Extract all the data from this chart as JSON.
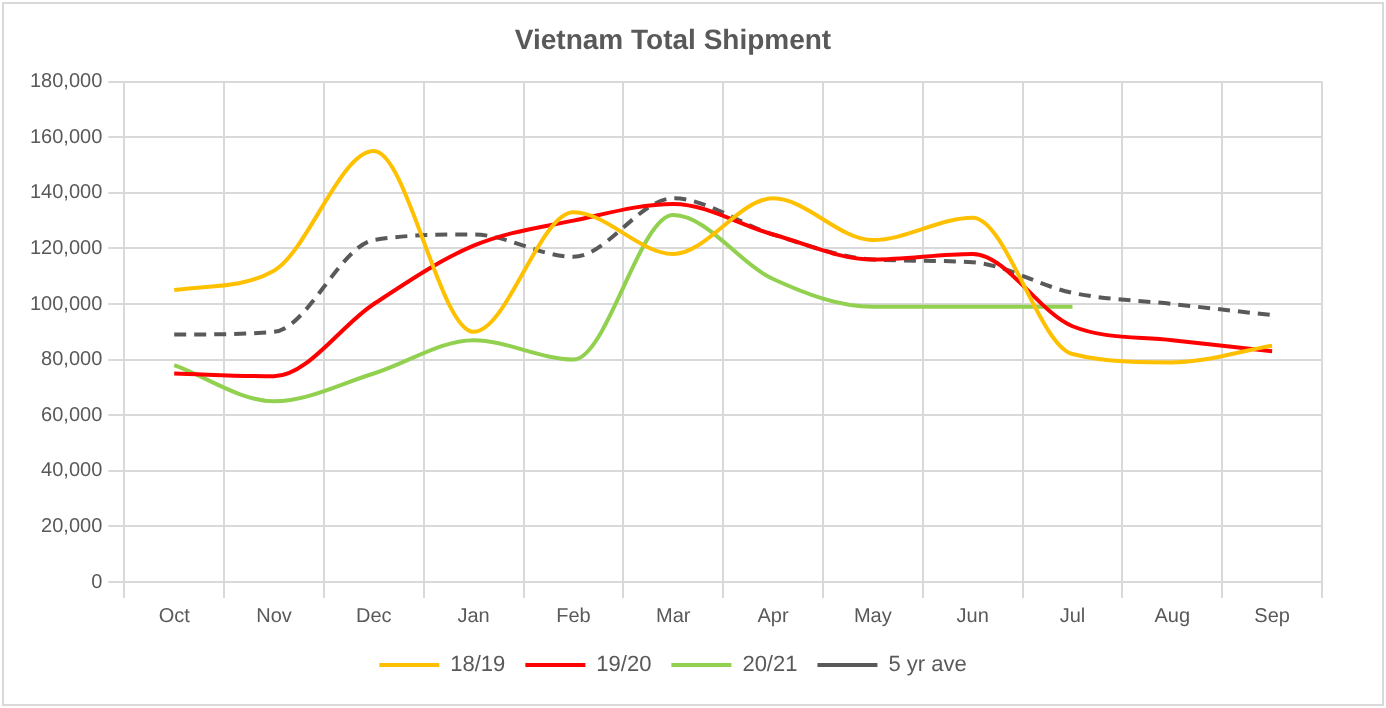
{
  "chart_data": {
    "type": "line",
    "title": "Vietnam Total Shipment",
    "categories": [
      "Oct",
      "Nov",
      "Dec",
      "Jan",
      "Feb",
      "Mar",
      "Apr",
      "May",
      "Jun",
      "Jul",
      "Aug",
      "Sep"
    ],
    "series": [
      {
        "name": "18/19",
        "color": "#ffc000",
        "values": [
          105000,
          112000,
          155000,
          90000,
          133000,
          118000,
          138000,
          123000,
          131000,
          82000,
          79000,
          85000
        ]
      },
      {
        "name": "19/20",
        "color": "#ff0000",
        "values": [
          75000,
          74000,
          100000,
          121000,
          130000,
          136000,
          125000,
          116000,
          118000,
          92000,
          87000,
          83000
        ]
      },
      {
        "name": "20/21",
        "color": "#92d050",
        "values": [
          78000,
          65000,
          75000,
          87000,
          80000,
          132000,
          109000,
          99000,
          99000,
          99000,
          null,
          null
        ]
      },
      {
        "name": "5 yr ave",
        "color": "#595959",
        "line_style": "dashed",
        "values": [
          89000,
          90000,
          123000,
          125000,
          117000,
          138000,
          125000,
          116000,
          115000,
          104000,
          100000,
          96000
        ]
      }
    ],
    "ylim": [
      0,
      180000
    ],
    "yticks": [
      0,
      {
        "value": 20000,
        "label": "20,000"
      },
      {
        "value": 40000,
        "label": "40,000"
      },
      {
        "value": 60000,
        "label": "60,000"
      },
      {
        "value": 80000,
        "label": "80,000"
      },
      {
        "value": 100000,
        "label": "100,000"
      },
      {
        "value": 120000,
        "label": "120,000"
      },
      {
        "value": 140000,
        "label": "140,000"
      },
      {
        "value": 160000,
        "label": "160,000"
      },
      {
        "value": 180000,
        "label": "180,000"
      }
    ],
    "grid": true,
    "legend": "bottom",
    "marker": "none",
    "line_style": "solid"
  }
}
